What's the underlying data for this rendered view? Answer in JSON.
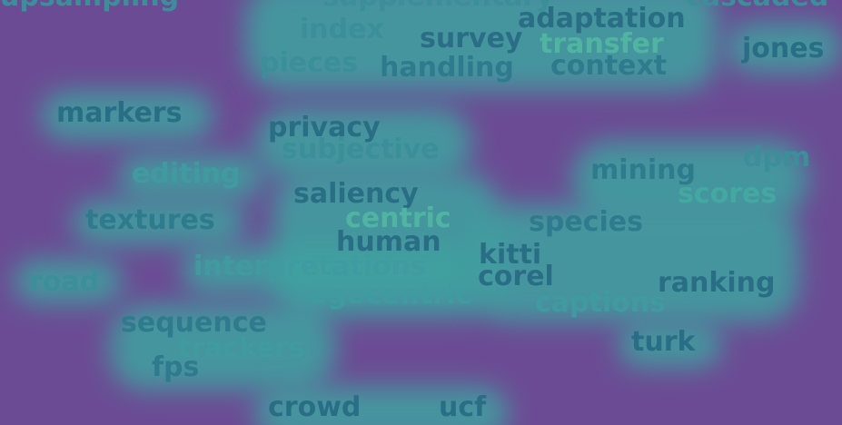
{
  "word_cloud": {
    "words": [
      {
        "text": "upsampling",
        "color": "#3a8f98"
      },
      {
        "text": "supplementary",
        "color": "#3a8f98"
      },
      {
        "text": "cascaded",
        "color": "#3a8f98"
      },
      {
        "text": "index",
        "color": "#3a8f98"
      },
      {
        "text": "adaptation",
        "color": "#2a6e86"
      },
      {
        "text": "survey",
        "color": "#2a6e86"
      },
      {
        "text": "transfer",
        "color": "#4fb5a0"
      },
      {
        "text": "jones",
        "color": "#2a6e86"
      },
      {
        "text": "pieces",
        "color": "#3a8f98"
      },
      {
        "text": "handling",
        "color": "#2f7b8e"
      },
      {
        "text": "context",
        "color": "#2f7b8e"
      },
      {
        "text": "markers",
        "color": "#2a6e86"
      },
      {
        "text": "privacy",
        "color": "#2a6e86"
      },
      {
        "text": "subjective",
        "color": "#3a8f98"
      },
      {
        "text": "dpm",
        "color": "#3a8f98"
      },
      {
        "text": "editing",
        "color": "#3f9ba0"
      },
      {
        "text": "mining",
        "color": "#2f7b8e"
      },
      {
        "text": "scores",
        "color": "#43a8a0"
      },
      {
        "text": "saliency",
        "color": "#2a6e86"
      },
      {
        "text": "textures",
        "color": "#2f7b8e"
      },
      {
        "text": "centric",
        "color": "#4fb5a0"
      },
      {
        "text": "species",
        "color": "#2f7b8e"
      },
      {
        "text": "human",
        "color": "#2a6e86"
      },
      {
        "text": "kitti",
        "color": "#2a6e86"
      },
      {
        "text": "interpretations",
        "color": "#3f9ba0"
      },
      {
        "text": "road",
        "color": "#3a8f98"
      },
      {
        "text": "corel",
        "color": "#2a6e86"
      },
      {
        "text": "ranking",
        "color": "#2a6e86"
      },
      {
        "text": "egocentric",
        "color": "#3f9ba0"
      },
      {
        "text": "captions",
        "color": "#3f9ba0"
      },
      {
        "text": "sequence",
        "color": "#2f7b8e"
      },
      {
        "text": "trackers",
        "color": "#3f9ba0"
      },
      {
        "text": "turk",
        "color": "#2a6e86"
      },
      {
        "text": "fps",
        "color": "#2f7b8e"
      },
      {
        "text": "crowd",
        "color": "#2a6e86"
      },
      {
        "text": "ucf",
        "color": "#2a6e86"
      }
    ]
  }
}
